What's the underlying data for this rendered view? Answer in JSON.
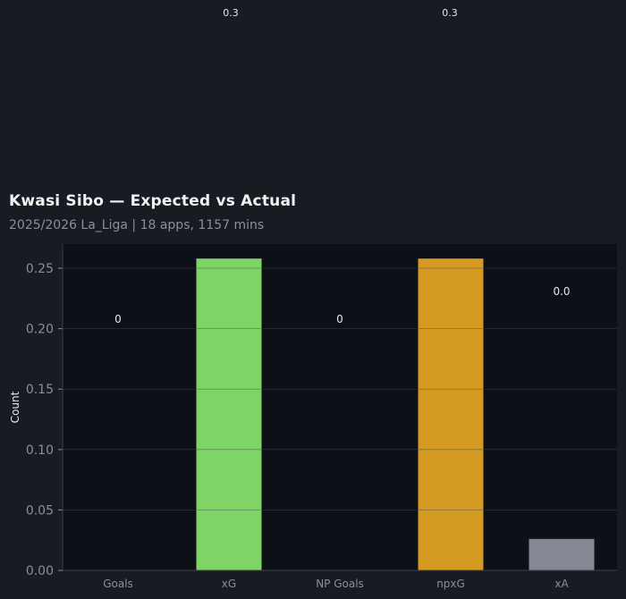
{
  "top_labels": [
    "0.3",
    "0.3"
  ],
  "header": {
    "title": "Kwasi Sibo — Expected vs Actual",
    "subtitle": "2025/2026 La_Liga | 18 apps, 1157 mins"
  },
  "colors": {
    "background": "#181b21",
    "plot_background": "#0d1016",
    "text": "#e6e6e6",
    "muted": "#8c8f95"
  },
  "chart_data": {
    "type": "bar",
    "categories": [
      "Goals",
      "xG",
      "NP Goals",
      "npxG",
      "xA"
    ],
    "values": [
      0,
      0.258,
      0,
      0.258,
      0.026
    ],
    "data_labels": [
      "0",
      "",
      "0",
      "",
      "0.0"
    ],
    "colors": [
      "#3a3f46",
      "#7ed464",
      "#3a3f46",
      "#d49a22",
      "#848892"
    ],
    "ylabel": "Count",
    "xlabel": "",
    "ylim": [
      0,
      0.27
    ],
    "yticks": [
      0.0,
      0.05,
      0.1,
      0.15,
      0.2,
      0.25
    ],
    "ytick_labels": [
      "0.00",
      "0.05",
      "0.10",
      "0.15",
      "0.20",
      "0.25"
    ],
    "grid": true,
    "legend": "none"
  }
}
